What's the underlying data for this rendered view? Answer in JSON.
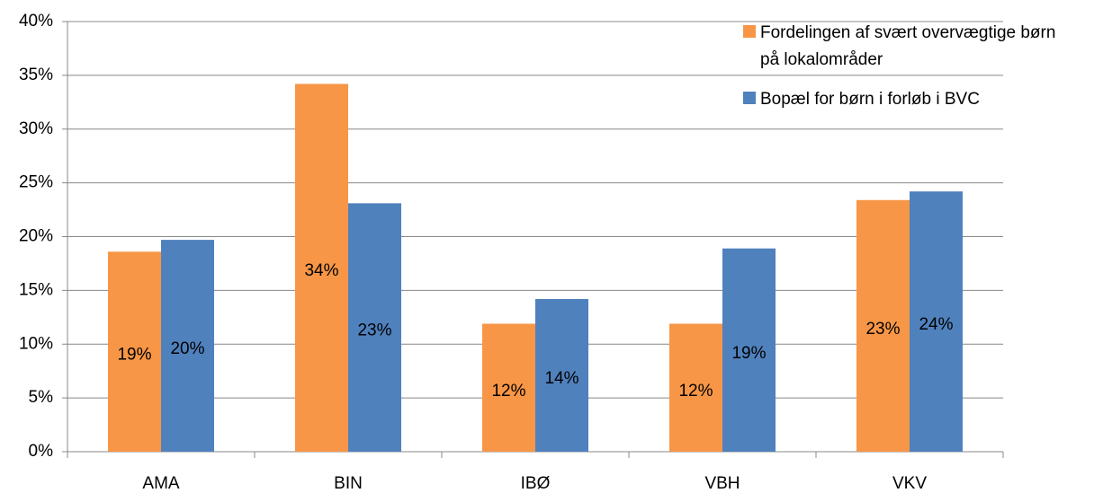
{
  "chart_data": {
    "type": "bar",
    "categories": [
      "AMA",
      "BIN",
      "IBØ",
      "VBH",
      "VKV"
    ],
    "series": [
      {
        "name": "Fordelingen af svært overvægtige børn på lokalområder",
        "color": "#f79646",
        "values": [
          18.6,
          34.2,
          11.9,
          11.9,
          23.4
        ],
        "value_labels": [
          "19%",
          "34%",
          "12%",
          "12%",
          "23%"
        ]
      },
      {
        "name": "Bopæl for børn i forløb i BVC",
        "color": "#4f81bd",
        "values": [
          19.7,
          23.1,
          14.2,
          18.9,
          24.2
        ],
        "value_labels": [
          "20%",
          "23%",
          "14%",
          "19%",
          "24%"
        ]
      }
    ],
    "ylim": [
      0,
      40
    ],
    "yticks": [
      {
        "value": 0,
        "label": "0%"
      },
      {
        "value": 5,
        "label": "5%"
      },
      {
        "value": 10,
        "label": "10%"
      },
      {
        "value": 15,
        "label": "15%"
      },
      {
        "value": 20,
        "label": "20%"
      },
      {
        "value": 25,
        "label": "25%"
      },
      {
        "value": 30,
        "label": "30%"
      },
      {
        "value": 35,
        "label": "35%"
      },
      {
        "value": 40,
        "label": "40%"
      }
    ],
    "grid": true,
    "legend": "top-right"
  }
}
